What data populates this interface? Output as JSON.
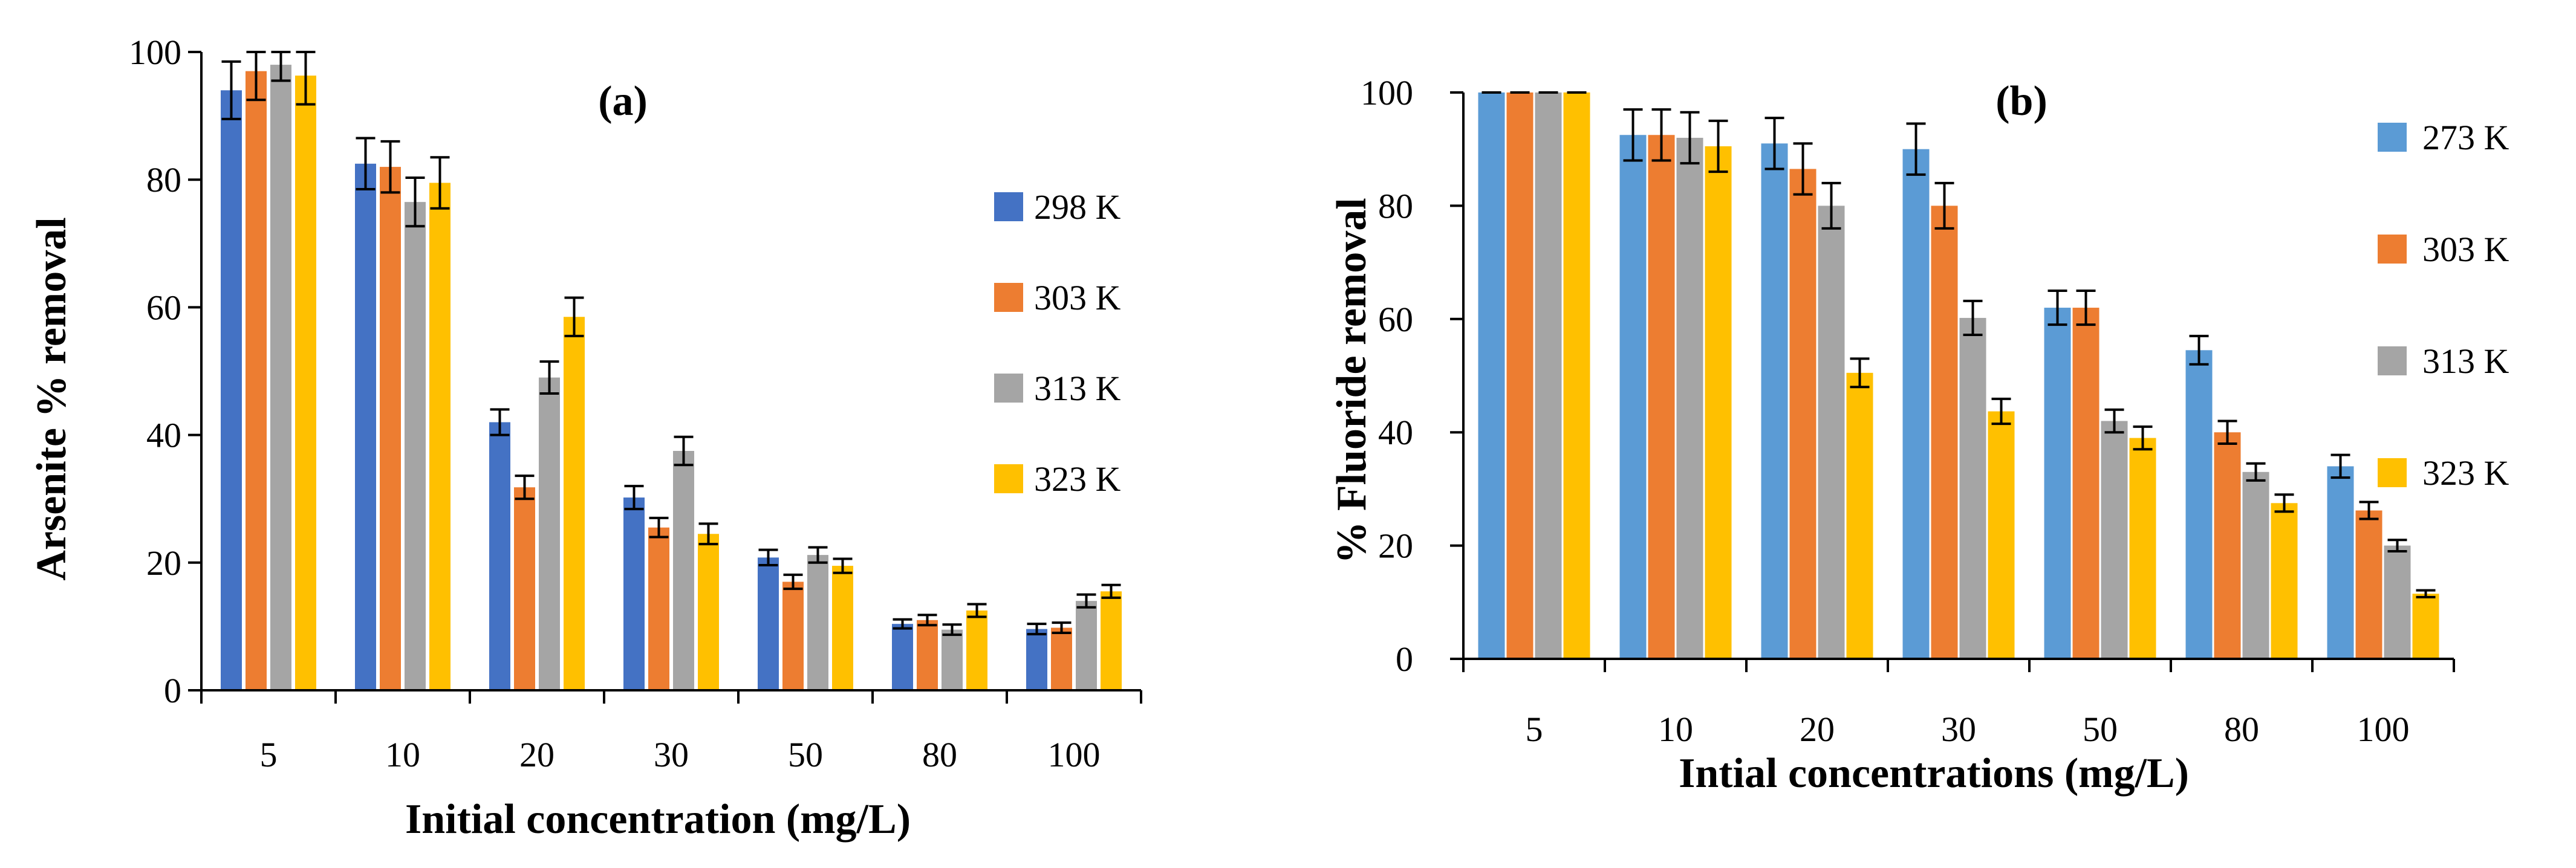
{
  "chart_data": [
    {
      "type": "bar",
      "panel_label": "(a)",
      "categories": [
        "5",
        "10",
        "20",
        "30",
        "50",
        "80",
        "100"
      ],
      "series": [
        {
          "name": "298 K",
          "color": "#4472C4",
          "values": [
            94,
            82.5,
            42,
            30.2,
            20.8,
            10.4,
            9.6
          ],
          "errors": [
            4.5,
            4,
            2,
            1.8,
            1.2,
            0.7,
            0.8
          ]
        },
        {
          "name": "303 K",
          "color": "#ED7D31",
          "values": [
            97,
            82,
            31.8,
            25.5,
            17,
            11,
            9.8
          ],
          "errors": [
            4.5,
            4,
            1.8,
            1.5,
            1.1,
            0.8,
            0.8
          ]
        },
        {
          "name": "313 K",
          "color": "#A5A5A5",
          "values": [
            98,
            76.5,
            49,
            37.5,
            21.2,
            9.5,
            14
          ],
          "errors": [
            2.5,
            3.8,
            2.5,
            2.2,
            1.2,
            0.8,
            1
          ]
        },
        {
          "name": "323 K",
          "color": "#FFC000",
          "values": [
            96.3,
            79.5,
            58.5,
            24.5,
            19.5,
            12.5,
            15.5
          ],
          "errors": [
            4.5,
            4,
            3,
            1.6,
            1.1,
            1,
            1
          ]
        }
      ],
      "xlabel": "Initial concentration (mg/L)",
      "ylabel": "Arsenite % removal",
      "ylim": [
        0,
        100
      ],
      "yticks": [
        "0",
        "20",
        "40",
        "60",
        "80",
        "100"
      ],
      "legend_position": "right"
    },
    {
      "type": "bar",
      "panel_label": "(b)",
      "categories": [
        "5",
        "10",
        "20",
        "30",
        "50",
        "80",
        "100"
      ],
      "series": [
        {
          "name": "273 K",
          "color": "#5B9BD5",
          "values": [
            100,
            92.5,
            91,
            90,
            62,
            54.5,
            34
          ],
          "errors": [
            0,
            4.5,
            4.5,
            4.5,
            3,
            2.5,
            2
          ]
        },
        {
          "name": "303 K",
          "color": "#ED7D31",
          "values": [
            100,
            92.5,
            86.5,
            80,
            62,
            40,
            26.2
          ],
          "errors": [
            0,
            4.5,
            4.5,
            4,
            3,
            2,
            1.5
          ]
        },
        {
          "name": "313 K",
          "color": "#A5A5A5",
          "values": [
            100,
            92,
            80,
            60.2,
            42,
            33,
            20
          ],
          "errors": [
            0,
            4.5,
            4,
            3,
            2,
            1.5,
            1
          ]
        },
        {
          "name": "323 K",
          "color": "#FFC000",
          "values": [
            100,
            90.5,
            50.5,
            43.7,
            39,
            27.5,
            11.5
          ],
          "errors": [
            0,
            4.5,
            2.5,
            2.2,
            2,
            1.5,
            0.6
          ]
        }
      ],
      "xlabel": "Intial concentrations (mg/L)",
      "ylabel": "% Fluoride removal",
      "ylim": [
        0,
        100
      ],
      "yticks": [
        "0",
        "20",
        "40",
        "60",
        "80",
        "100"
      ],
      "legend_position": "right"
    }
  ]
}
